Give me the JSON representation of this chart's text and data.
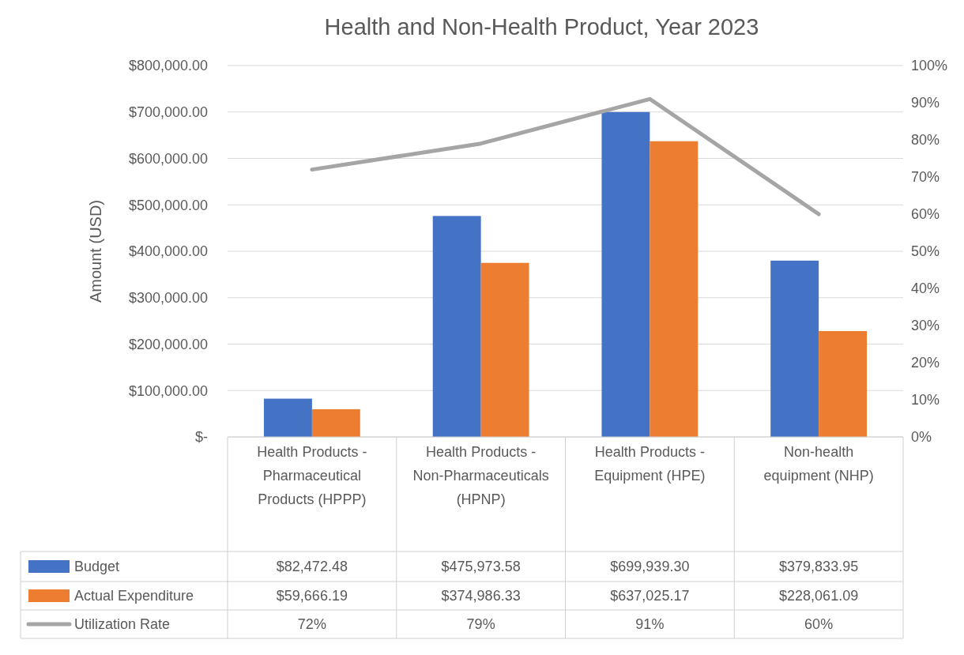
{
  "chart_data": {
    "type": "bar",
    "title": "Health and Non-Health Product, Year 2023",
    "ylabel": "Amount (USD)",
    "categories": [
      "Health Products - Pharmaceutical Products (HPPP)",
      "Health Products - Non-Pharmaceuticals (HPNP)",
      "Health Products - Equipment (HPE)",
      "Non-health equipment (NHP)"
    ],
    "series": [
      {
        "name": "Budget",
        "color": "#4472c4",
        "values": [
          82472.48,
          475973.58,
          699939.3,
          379833.95
        ],
        "value_labels": [
          "$82,472.48",
          "$475,973.58",
          "$699,939.30",
          "$379,833.95"
        ]
      },
      {
        "name": "Actual Expenditure",
        "color": "#ed7d31",
        "values": [
          59666.19,
          374986.33,
          637025.17,
          228061.09
        ],
        "value_labels": [
          "$59,666.19",
          "$374,986.33",
          "$637,025.17",
          "$228,061.09"
        ]
      },
      {
        "name": "Utilization Rate",
        "type": "line",
        "axis": "y2",
        "color": "#a5a5a5",
        "values": [
          72,
          79,
          91,
          60
        ],
        "value_labels": [
          "72%",
          "79%",
          "91%",
          "60%"
        ]
      }
    ],
    "ylim": [
      0,
      800000
    ],
    "yticks": [
      {
        "value": 0,
        "label": "$-"
      },
      {
        "value": 100000,
        "label": "$100,000.00"
      },
      {
        "value": 200000,
        "label": "$200,000.00"
      },
      {
        "value": 300000,
        "label": "$300,000.00"
      },
      {
        "value": 400000,
        "label": "$400,000.00"
      },
      {
        "value": 500000,
        "label": "$500,000.00"
      },
      {
        "value": 600000,
        "label": "$600,000.00"
      },
      {
        "value": 700000,
        "label": "$700,000.00"
      },
      {
        "value": 800000,
        "label": "$800,000.00"
      }
    ],
    "y2lim": [
      0,
      100
    ],
    "y2ticks": [
      {
        "value": 0,
        "label": "0%"
      },
      {
        "value": 10,
        "label": "10%"
      },
      {
        "value": 20,
        "label": "20%"
      },
      {
        "value": 30,
        "label": "30%"
      },
      {
        "value": 40,
        "label": "40%"
      },
      {
        "value": 50,
        "label": "50%"
      },
      {
        "value": 60,
        "label": "60%"
      },
      {
        "value": 70,
        "label": "70%"
      },
      {
        "value": 80,
        "label": "80%"
      },
      {
        "value": 90,
        "label": "90%"
      },
      {
        "value": 100,
        "label": "100%"
      }
    ],
    "grid": "y",
    "legend": "bottom",
    "marker": "none",
    "line_style": "solid"
  }
}
